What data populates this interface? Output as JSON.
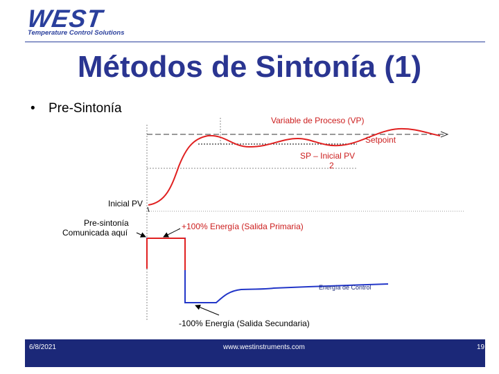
{
  "logo": {
    "word": "WEST",
    "tagline": "Temperature Control Solutions"
  },
  "title": "Métodos de Sintonía (1)",
  "bullet": {
    "symbol": "•",
    "text": "Pre-Sintonía"
  },
  "diagram": {
    "labels": {
      "process_variable": "Variable de Proceso (VP)",
      "setpoint": "Setpoint",
      "sp_initial_line1": "SP – Inicial PV",
      "sp_initial_line2": "2",
      "initial_pv": "Inicial PV",
      "pretune_line1": "Pre-sintonía",
      "pretune_line2": "Comunicada aquí",
      "primary_output": "+100% Energía (Salida Primaria)",
      "control_energy": "Energía de Control",
      "secondary_output": "-100% Energía (Salida Secundaria)"
    },
    "colors": {
      "pv_curve": "#e02020",
      "energy_curve": "#2236c8",
      "guides": "#777777",
      "text_red": "#cc1d1d",
      "text_navy": "#1a2a7a"
    }
  },
  "footer": {
    "date": "6/8/2021",
    "url": "www.westinstruments.com",
    "page": "19"
  }
}
